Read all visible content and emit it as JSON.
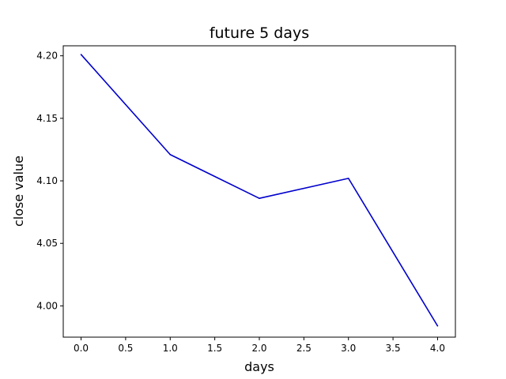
{
  "chart_data": {
    "type": "line",
    "title": "future 5 days",
    "xlabel": "days",
    "ylabel": "close value",
    "xlim": [
      -0.2,
      4.2
    ],
    "ylim": [
      3.975,
      4.208
    ],
    "xticks": [
      0.0,
      0.5,
      1.0,
      1.5,
      2.0,
      2.5,
      3.0,
      3.5,
      4.0
    ],
    "xtick_labels": [
      "0.0",
      "0.5",
      "1.0",
      "1.5",
      "2.0",
      "2.5",
      "3.0",
      "3.5",
      "4.0"
    ],
    "yticks": [
      4.0,
      4.05,
      4.1,
      4.15,
      4.2
    ],
    "ytick_labels": [
      "4.00",
      "4.05",
      "4.10",
      "4.15",
      "4.20"
    ],
    "grid": false,
    "legend": "none",
    "series": [
      {
        "color": "#0000cc",
        "x": [
          0,
          1,
          2,
          3,
          4
        ],
        "y": [
          4.201,
          4.121,
          4.086,
          4.102,
          3.984
        ]
      }
    ]
  }
}
